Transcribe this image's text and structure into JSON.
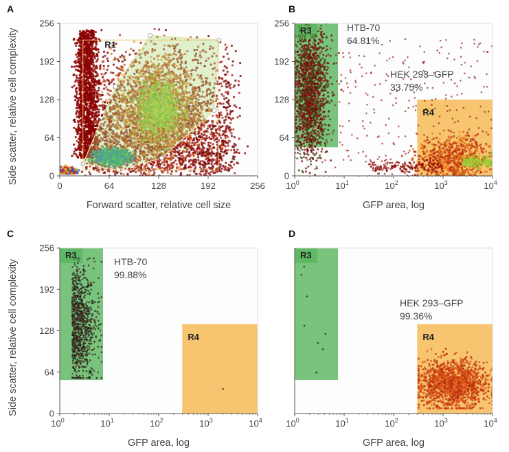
{
  "chart_data": [
    {
      "panel": "A",
      "type": "scatter",
      "xlabel": "Forward scatter, relative cell size",
      "ylabel": "Side scatter, relative cell complexity",
      "xscale": "linear",
      "xlim": [
        0,
        256
      ],
      "xticks": [
        "0",
        "64",
        "128",
        "192",
        "256"
      ],
      "yticks": [
        "0",
        "64",
        "128",
        "192",
        "256"
      ],
      "ylim": [
        0,
        256
      ],
      "gates": [
        {
          "name": "R1",
          "polygon": [
            [
              30,
              20
            ],
            [
              76,
              10
            ],
            [
              132,
              30
            ],
            [
              200,
              110
            ],
            [
              206,
              228
            ],
            [
              117,
              236
            ],
            [
              72,
              150
            ]
          ]
        },
        {
          "name": "",
          "rect": [
            [
              30,
              10
            ],
            [
              205,
              228
            ]
          ]
        }
      ],
      "populations": [
        {
          "center_x": 120,
          "center_y": 100,
          "spread_x": 55,
          "spread_y": 80,
          "density": "high",
          "color": "#8b0000"
        },
        {
          "center_x": 66,
          "center_y": 30,
          "spread_x": 20,
          "spread_y": 10,
          "density": "high",
          "color": "#1fa86a"
        },
        {
          "center_x": 130,
          "center_y": 110,
          "spread_x": 15,
          "spread_y": 25,
          "density": "high",
          "color": "#9acd32"
        }
      ]
    },
    {
      "panel": "B",
      "type": "scatter",
      "xlabel": "GFP area, log",
      "xscale": "log",
      "xlim": [
        1,
        10000
      ],
      "xticks": [
        "10",
        "10",
        "10",
        "10",
        "10"
      ],
      "xtick_exponents": [
        "0",
        "1",
        "2",
        "3",
        "4"
      ],
      "yticks": [
        "0",
        "64",
        "128",
        "192",
        "256"
      ],
      "ylim": [
        0,
        256
      ],
      "gates": [
        {
          "name": "R3",
          "x": [
            1,
            7.5
          ],
          "y": [
            48,
            256
          ],
          "color": "#4caf50"
        },
        {
          "name": "R4",
          "x": [
            300,
            10000
          ],
          "y": [
            0,
            128
          ],
          "color": "#f5a623"
        }
      ],
      "annotations": [
        {
          "label": "HTB-70",
          "percent": "64.81%"
        },
        {
          "label": "HEK 293–GFP",
          "percent": "33.75%"
        }
      ]
    },
    {
      "panel": "C",
      "type": "scatter",
      "xlabel": "GFP area, log",
      "xscale": "log",
      "xlim": [
        1,
        10000
      ],
      "ylabel": "Side scatter, relative cell complexity",
      "xticks": [
        "10",
        "10",
        "10",
        "10",
        "10"
      ],
      "xtick_exponents": [
        "0",
        "1",
        "2",
        "3",
        "4"
      ],
      "yticks": [
        "0",
        "64",
        "128",
        "192",
        "256"
      ],
      "ylim": [
        0,
        256
      ],
      "gates": [
        {
          "name": "R3",
          "x": [
            1,
            7.5
          ],
          "y": [
            52,
            256
          ],
          "color": "#4caf50"
        },
        {
          "name": "R4",
          "x": [
            300,
            10000
          ],
          "y": [
            0,
            138
          ],
          "color": "#f5a623"
        }
      ],
      "annotations": [
        {
          "label": "HTB-70",
          "percent": "99.88%"
        }
      ]
    },
    {
      "panel": "D",
      "type": "scatter",
      "xlabel": "GFP area, log",
      "xscale": "log",
      "xlim": [
        1,
        10000
      ],
      "xticks": [
        "10",
        "10",
        "10",
        "10",
        "10"
      ],
      "xtick_exponents": [
        "0",
        "1",
        "2",
        "3",
        "4"
      ],
      "gates": [
        {
          "name": "R3",
          "x": [
            1,
            7.5
          ],
          "y": [
            52,
            256
          ],
          "color": "#4caf50"
        },
        {
          "name": "R4",
          "x": [
            300,
            10000
          ],
          "y": [
            0,
            138
          ],
          "color": "#f5a623"
        }
      ],
      "annotations": [
        {
          "label": "HEK 293–GFP",
          "percent": "99.36%"
        }
      ]
    }
  ]
}
